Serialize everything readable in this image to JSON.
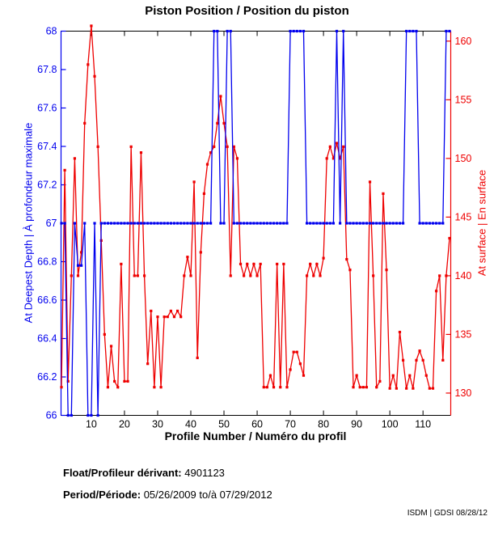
{
  "title": "Piston Position / Position du piston",
  "footer": {
    "float_label": "Float/Profileur dérivant:",
    "float_value": "4901123",
    "period_label": "Period/Période:",
    "period_value": "05/26/2009  to/à  07/29/2012",
    "stamp": "ISDM | GDSI 08/28/12"
  },
  "chart_data": {
    "type": "line",
    "title": "Piston Position / Position du piston",
    "xlabel": "Profile Number / Numéro du profil",
    "x_start": 1,
    "x_step": 1,
    "n_points": 118,
    "xlim": [
      1,
      118
    ],
    "x_ticks": [
      10,
      20,
      30,
      40,
      50,
      60,
      70,
      80,
      90,
      100,
      110
    ],
    "grid": false,
    "legend": "none",
    "left_axis": {
      "label": "At Deepest Depth | À profondeur maximale",
      "color": "#0000EE",
      "ylim": [
        66,
        68
      ],
      "tick_values": [
        66,
        66.2,
        66.4,
        66.6,
        66.8,
        67,
        67.2,
        67.4,
        67.6,
        67.8,
        68
      ],
      "tick_labels": [
        "66",
        "66.2",
        "66.4",
        "66.6",
        "66.8",
        "67",
        "67.2",
        "67.4",
        "67.6",
        "67.8",
        "68"
      ]
    },
    "right_axis": {
      "label": "At surface | En surface",
      "color": "#EE0000",
      "ylim": [
        128.1,
        160.85
      ],
      "tick_values": [
        130,
        135,
        140,
        145,
        150,
        155,
        160
      ],
      "tick_labels": [
        "130",
        "135",
        "140",
        "145",
        "150",
        "155",
        "160"
      ]
    },
    "series": [
      {
        "name": "At surface | En surface",
        "axis": "right",
        "color": "#EE0000",
        "marker": "square",
        "values": [
          130.5,
          149,
          131,
          140,
          150,
          140,
          142,
          153,
          158,
          161.3,
          157,
          151,
          143,
          135,
          130.5,
          134,
          131,
          130.5,
          141,
          131,
          131,
          151,
          140,
          140,
          150.5,
          140,
          132.5,
          137,
          130.5,
          136.5,
          130.5,
          136.5,
          136.5,
          137,
          136.5,
          137,
          136.5,
          140,
          141.6,
          140,
          148,
          133,
          142,
          147,
          149.5,
          150.5,
          151,
          153,
          155.3,
          153,
          151,
          140,
          151,
          150,
          141,
          140,
          141,
          140,
          141,
          140,
          141,
          130.5,
          130.5,
          131.5,
          130.5,
          141,
          130.5,
          141,
          130.5,
          132,
          133.5,
          133.5,
          132.5,
          131.5,
          140,
          141,
          140,
          141,
          140,
          141.5,
          150,
          151,
          150,
          151.3,
          150,
          151,
          141.4,
          140.5,
          130.5,
          131.5,
          130.5,
          130.5,
          130.5,
          148,
          140,
          130.5,
          131,
          147,
          140.5,
          130.4,
          131.5,
          130.4,
          135.2,
          132.8,
          130.4,
          131.5,
          130.4,
          132.8,
          133.6,
          132.8,
          131.5,
          130.4,
          130.4,
          138.7,
          140,
          132.8,
          140,
          143.2
        ]
      },
      {
        "name": "At Deepest Depth | À profondeur maximale",
        "axis": "left",
        "color": "#0000EE",
        "marker": "square",
        "values": [
          67,
          67,
          66,
          66,
          67,
          66.78,
          66.78,
          67,
          66,
          66,
          67,
          66,
          67,
          67,
          67,
          67,
          67,
          67,
          67,
          67,
          67,
          67,
          67,
          67,
          67,
          67,
          67,
          67,
          67,
          67,
          67,
          67,
          67,
          67,
          67,
          67,
          67,
          67,
          67,
          67,
          67,
          67,
          67,
          67,
          67,
          67,
          68,
          68,
          67,
          67,
          68,
          68,
          67,
          67,
          67,
          67,
          67,
          67,
          67,
          67,
          67,
          67,
          67,
          67,
          67,
          67,
          67,
          67,
          67,
          68,
          68,
          68,
          68,
          68,
          67,
          67,
          67,
          67,
          67,
          67,
          67,
          67,
          67,
          68,
          67,
          68,
          67,
          67,
          67,
          67,
          67,
          67,
          67,
          67,
          67,
          67,
          67,
          67,
          67,
          67,
          67,
          67,
          67,
          67,
          68,
          68,
          68,
          68,
          67,
          67,
          67,
          67,
          67,
          67,
          67,
          67,
          68,
          68
        ]
      }
    ]
  }
}
